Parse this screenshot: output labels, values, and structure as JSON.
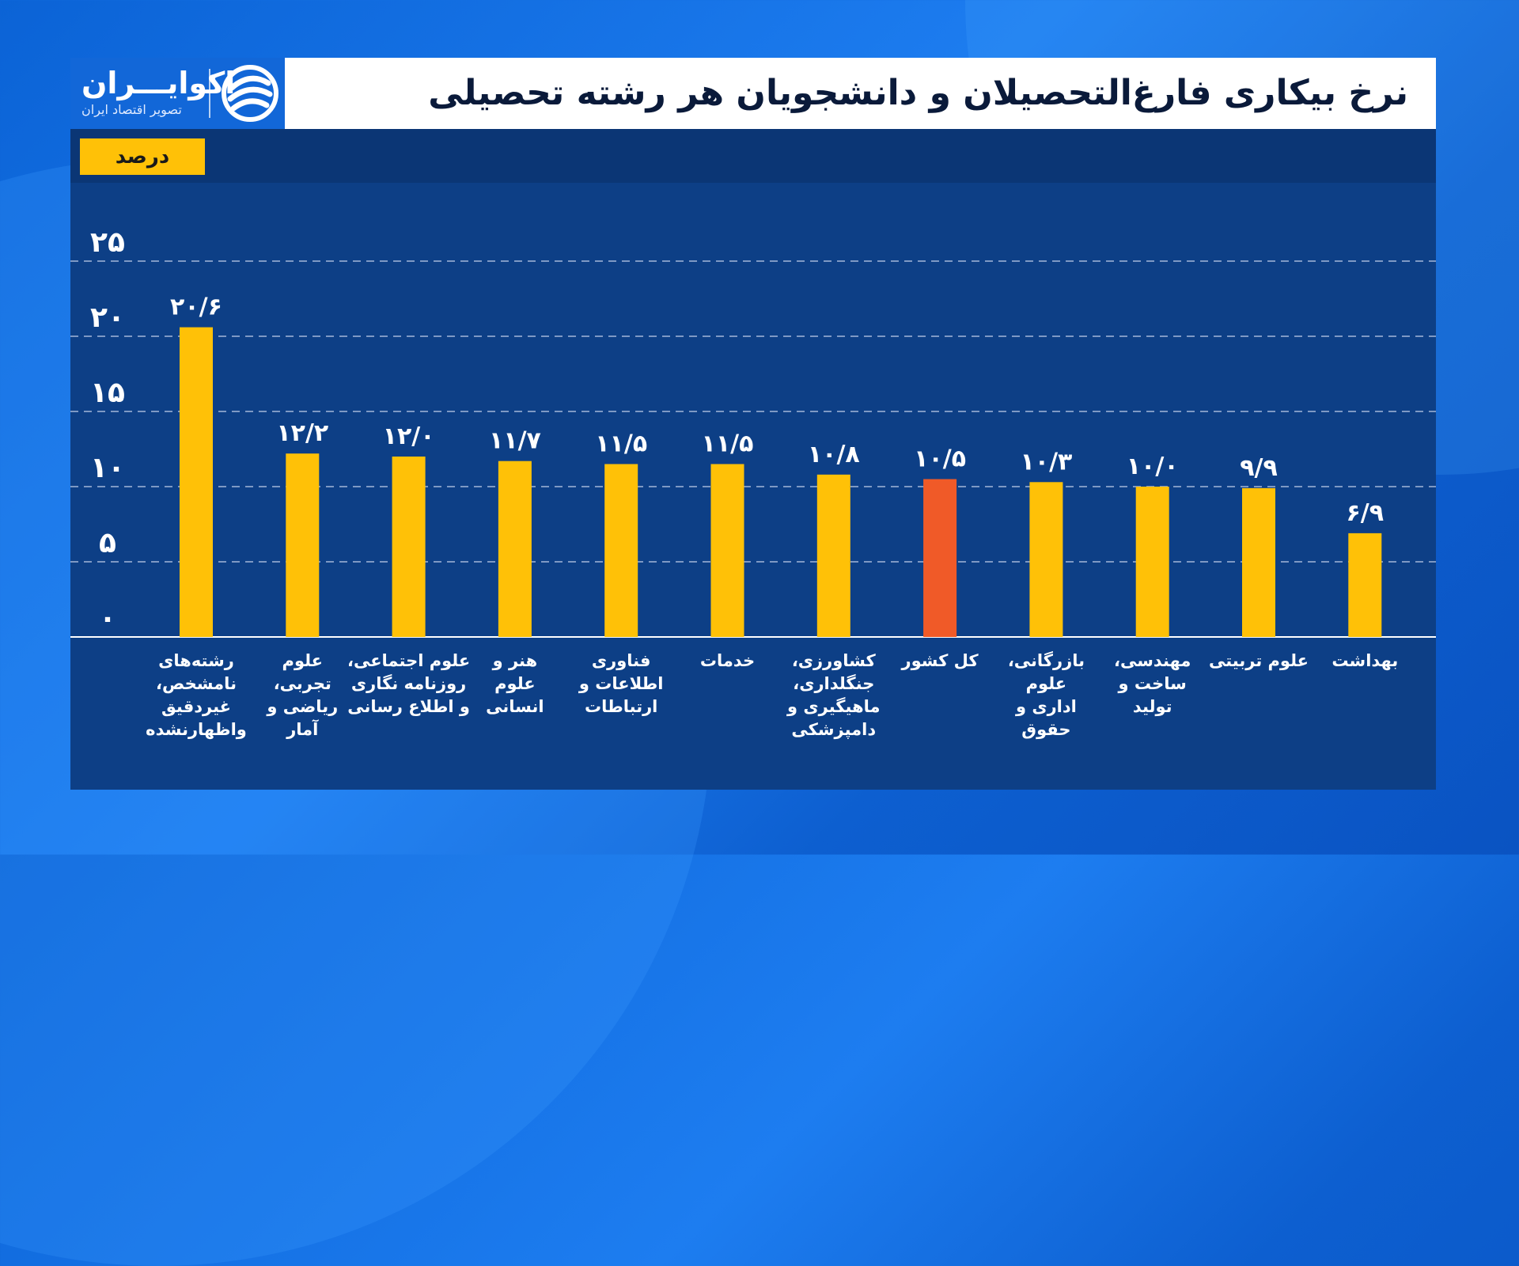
{
  "header": {
    "title": "نرخ بیکاری فارغ‌التحصیلان و دانشجویان هر رشته تحصیلی",
    "logo_name": "اکوایـــران",
    "logo_tagline": "تصویر اقتصاد ایران",
    "unit_label": "درصد"
  },
  "colors": {
    "bar": "#ffc107",
    "highlight_bar": "#f05a28",
    "panel": "#0d3f86",
    "grid": "#c9d6ee"
  },
  "chart_data": {
    "type": "bar",
    "title": "نرخ بیکاری فارغ‌التحصیلان و دانشجویان هر رشته تحصیلی",
    "ylabel": "درصد",
    "ylim": [
      0,
      25
    ],
    "yticks": [
      0,
      5,
      10,
      15,
      20,
      25
    ],
    "ytick_labels": [
      "۰",
      "۵",
      "۱۰",
      "۱۵",
      "۲۰",
      "۲۵"
    ],
    "grid": true,
    "categories": [
      [
        "رشته‌های",
        "نامشخص،",
        "غیردقیق",
        "واظهارنشده"
      ],
      [
        "علوم",
        "تجربی،",
        "ریاضی و",
        "آمار"
      ],
      [
        "علوم اجتماعی،",
        "روزنامه نگاری",
        "و اطلاع رسانی"
      ],
      [
        "هنر و",
        "علوم",
        "انسانی"
      ],
      [
        "فناوری",
        "اطلاعات و",
        "ارتباطات"
      ],
      [
        "خدمات"
      ],
      [
        "کشاورزی،",
        "جنگلداری،",
        "ماهیگیری و",
        "دامپزشکی"
      ],
      [
        "کل کشور"
      ],
      [
        "بازرگانی،",
        "علوم",
        "اداری و",
        "حقوق"
      ],
      [
        "مهندسی،",
        "ساخت و",
        "تولید"
      ],
      [
        "علوم تربیتی"
      ],
      [
        "بهداشت"
      ]
    ],
    "values": [
      20.6,
      12.2,
      12.0,
      11.7,
      11.5,
      11.5,
      10.8,
      10.5,
      10.3,
      10.0,
      9.9,
      6.9
    ],
    "value_labels": [
      "۲۰/۶",
      "۱۲/۲",
      "۱۲/۰",
      "۱۱/۷",
      "۱۱/۵",
      "۱۱/۵",
      "۱۰/۸",
      "۱۰/۵",
      "۱۰/۳",
      "۱۰/۰",
      "۹/۹",
      "۶/۹"
    ],
    "highlight": [
      false,
      false,
      false,
      false,
      false,
      false,
      false,
      true,
      false,
      false,
      false,
      false
    ]
  }
}
